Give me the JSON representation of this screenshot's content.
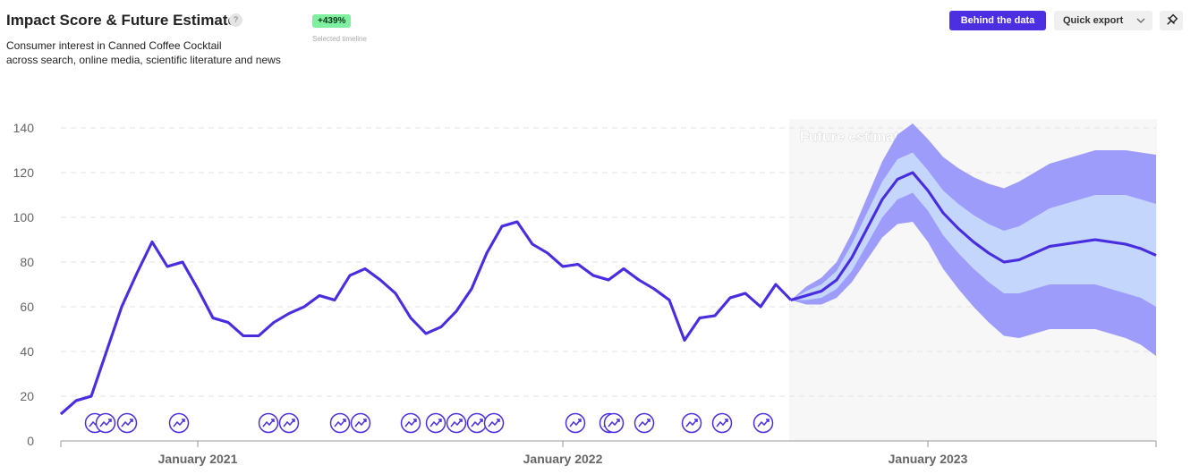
{
  "header": {
    "title": "Impact Score & Future Estimate",
    "help": "?",
    "subtitle": [
      "Consumer interest in Canned Coffee Cocktail",
      "across search, online media, scientific literature and news"
    ],
    "badge": "+439%",
    "badge_caption": "Selected timeline"
  },
  "toolbar": {
    "behind": "Behind the data",
    "export": "Quick export"
  },
  "chart_data": {
    "type": "line",
    "annotation": "Future estimate",
    "grid": true,
    "ylim": [
      0,
      140
    ],
    "yticks": [
      0,
      20,
      40,
      60,
      80,
      100,
      120,
      140
    ],
    "categories": [
      null,
      null,
      null,
      null,
      null,
      null,
      null,
      null,
      null,
      "January 2021",
      null,
      null,
      null,
      null,
      null,
      null,
      null,
      null,
      null,
      null,
      null,
      null,
      null,
      null,
      null,
      null,
      null,
      null,
      null,
      null,
      null,
      null,
      null,
      "January 2022",
      null,
      null,
      null,
      null,
      null,
      null,
      null,
      null,
      null,
      null,
      null,
      null,
      null,
      null,
      null,
      null,
      null,
      null,
      null,
      null,
      null,
      null,
      null,
      "January 2023",
      null,
      null,
      null,
      null,
      null,
      null,
      null,
      null,
      null,
      null,
      null,
      null,
      null,
      null,
      null
    ],
    "series": [
      {
        "color": "#4a2fe0",
        "values": [
          12,
          18,
          20,
          40,
          60,
          75,
          89,
          78,
          80,
          68,
          55,
          53,
          47,
          47,
          53,
          57,
          60,
          65,
          63,
          74,
          77,
          72,
          66,
          55,
          48,
          51,
          58,
          68,
          84,
          96,
          98,
          88,
          84,
          78,
          79,
          74,
          72,
          77,
          72,
          68,
          63,
          45,
          55,
          56,
          64,
          66,
          60,
          70,
          63,
          null,
          null,
          null,
          null,
          null,
          null,
          null,
          null,
          null,
          null,
          null,
          null,
          null,
          null,
          null,
          null,
          null,
          null,
          null,
          null,
          null,
          null,
          null,
          null
        ]
      }
    ],
    "forecast": {
      "color": "#4a2fe0",
      "inner_color": "#c5d6fd",
      "outer_color": "#9d9cfa",
      "shade_color": "#f7f7f7",
      "values": [
        null,
        null,
        null,
        null,
        null,
        null,
        null,
        null,
        null,
        null,
        null,
        null,
        null,
        null,
        null,
        null,
        null,
        null,
        null,
        null,
        null,
        null,
        null,
        null,
        null,
        null,
        null,
        null,
        null,
        null,
        null,
        null,
        null,
        null,
        null,
        null,
        null,
        null,
        null,
        null,
        null,
        null,
        null,
        null,
        null,
        null,
        null,
        null,
        63,
        65,
        67,
        72,
        82,
        95,
        108,
        117,
        120,
        112,
        102,
        95,
        89,
        84,
        80,
        81,
        84,
        87,
        88,
        89,
        90,
        89,
        88,
        86,
        83
      ],
      "inner_low": [
        null,
        null,
        null,
        null,
        null,
        null,
        null,
        null,
        null,
        null,
        null,
        null,
        null,
        null,
        null,
        null,
        null,
        null,
        null,
        null,
        null,
        null,
        null,
        null,
        null,
        null,
        null,
        null,
        null,
        null,
        null,
        null,
        null,
        null,
        null,
        null,
        null,
        null,
        null,
        null,
        null,
        null,
        null,
        null,
        null,
        null,
        null,
        null,
        63,
        63,
        64,
        68,
        76,
        88,
        100,
        108,
        111,
        103,
        92,
        84,
        77,
        71,
        66,
        66,
        68,
        70,
        70,
        70,
        70,
        68,
        66,
        64,
        60
      ],
      "inner_high": [
        null,
        null,
        null,
        null,
        null,
        null,
        null,
        null,
        null,
        null,
        null,
        null,
        null,
        null,
        null,
        null,
        null,
        null,
        null,
        null,
        null,
        null,
        null,
        null,
        null,
        null,
        null,
        null,
        null,
        null,
        null,
        null,
        null,
        null,
        null,
        null,
        null,
        null,
        null,
        null,
        null,
        null,
        null,
        null,
        null,
        null,
        null,
        null,
        63,
        67,
        70,
        76,
        88,
        102,
        116,
        126,
        129,
        121,
        112,
        106,
        101,
        97,
        94,
        96,
        100,
        104,
        106,
        108,
        110,
        110,
        110,
        108,
        106
      ],
      "outer_low": [
        null,
        null,
        null,
        null,
        null,
        null,
        null,
        null,
        null,
        null,
        null,
        null,
        null,
        null,
        null,
        null,
        null,
        null,
        null,
        null,
        null,
        null,
        null,
        null,
        null,
        null,
        null,
        null,
        null,
        null,
        null,
        null,
        null,
        null,
        null,
        null,
        null,
        null,
        null,
        null,
        null,
        null,
        null,
        null,
        null,
        null,
        null,
        null,
        63,
        61,
        61,
        64,
        71,
        81,
        91,
        97,
        98,
        89,
        77,
        68,
        60,
        53,
        47,
        46,
        48,
        50,
        50,
        50,
        50,
        48,
        46,
        43,
        38
      ],
      "outer_high": [
        null,
        null,
        null,
        null,
        null,
        null,
        null,
        null,
        null,
        null,
        null,
        null,
        null,
        null,
        null,
        null,
        null,
        null,
        null,
        null,
        null,
        null,
        null,
        null,
        null,
        null,
        null,
        null,
        null,
        null,
        null,
        null,
        null,
        null,
        null,
        null,
        null,
        null,
        null,
        null,
        null,
        null,
        null,
        null,
        null,
        null,
        null,
        null,
        63,
        69,
        73,
        80,
        93,
        109,
        125,
        137,
        142,
        135,
        127,
        122,
        118,
        115,
        113,
        116,
        120,
        124,
        126,
        128,
        130,
        130,
        130,
        129,
        128
      ]
    }
  }
}
